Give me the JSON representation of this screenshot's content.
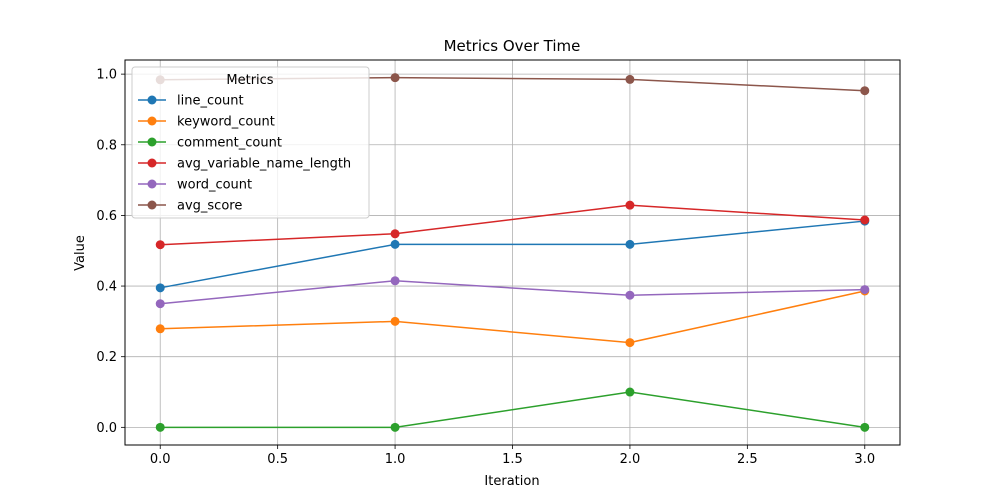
{
  "chart_data": {
    "type": "line",
    "title": "Metrics Over Time",
    "xlabel": "Iteration",
    "ylabel": "Value",
    "x": [
      0,
      1,
      2,
      3
    ],
    "xlim": [
      -0.15,
      3.15
    ],
    "ylim": [
      -0.05,
      1.04
    ],
    "xticks": [
      0.0,
      0.5,
      1.0,
      1.5,
      2.0,
      2.5,
      3.0
    ],
    "xtick_labels": [
      "0.0",
      "0.5",
      "1.0",
      "1.5",
      "2.0",
      "2.5",
      "3.0"
    ],
    "yticks": [
      0.0,
      0.2,
      0.4,
      0.6,
      0.8,
      1.0
    ],
    "ytick_labels": [
      "0.0",
      "0.2",
      "0.4",
      "0.6",
      "0.8",
      "1.0"
    ],
    "grid": true,
    "legend_title": "Metrics",
    "legend_position": "top-left",
    "series": [
      {
        "name": "line_count",
        "color": "#1f77b4",
        "values": [
          0.395,
          0.518,
          0.518,
          0.584
        ]
      },
      {
        "name": "keyword_count",
        "color": "#ff7f0e",
        "values": [
          0.279,
          0.3,
          0.24,
          0.386
        ]
      },
      {
        "name": "comment_count",
        "color": "#2ca02c",
        "values": [
          0.0,
          0.0,
          0.1,
          0.0
        ]
      },
      {
        "name": "avg_variable_name_length",
        "color": "#d62728",
        "values": [
          0.517,
          0.548,
          0.629,
          0.587
        ]
      },
      {
        "name": "word_count",
        "color": "#9467bd",
        "values": [
          0.35,
          0.415,
          0.374,
          0.39
        ]
      },
      {
        "name": "avg_score",
        "color": "#8c564b",
        "values": [
          0.984,
          0.99,
          0.985,
          0.953
        ]
      }
    ]
  }
}
